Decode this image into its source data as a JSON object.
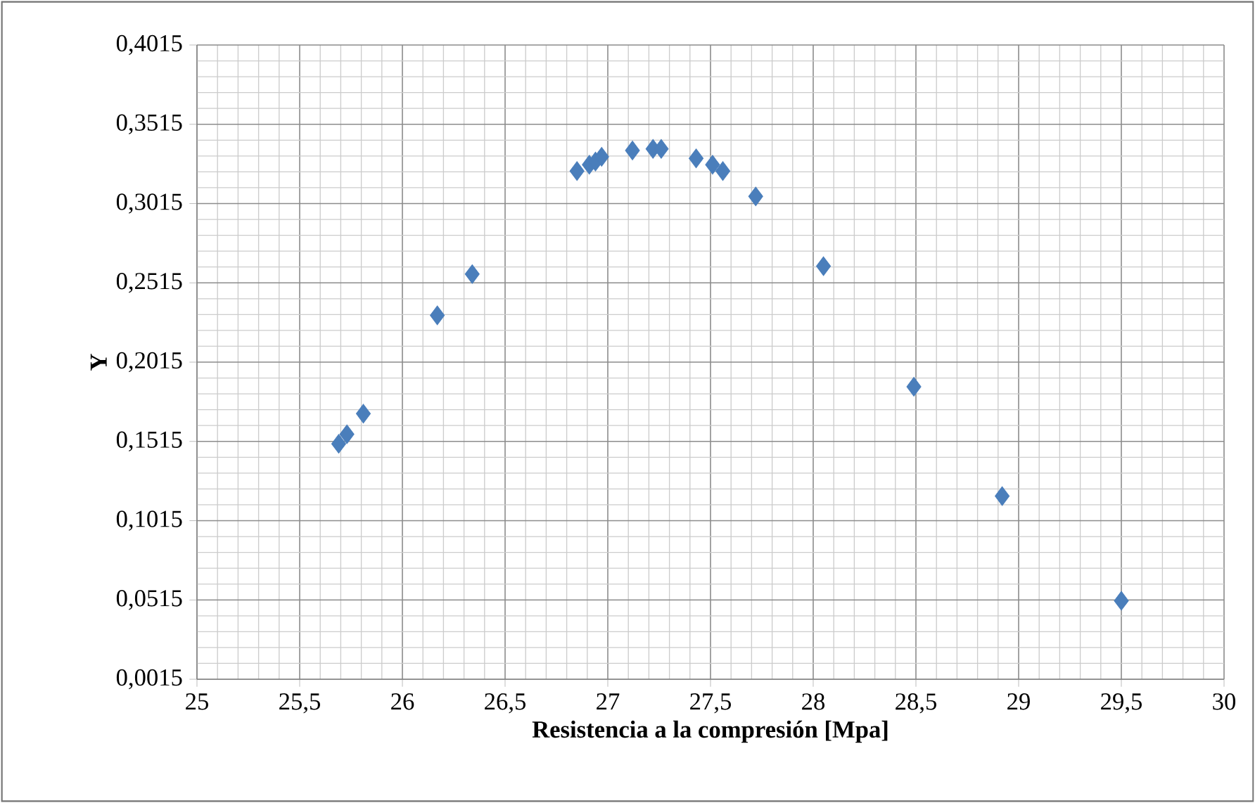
{
  "chart_data": {
    "type": "scatter",
    "xlabel": "Resistencia  a la compresión [Mpa]",
    "ylabel": "Y",
    "x": [
      25.69,
      25.73,
      25.81,
      26.17,
      26.34,
      26.85,
      26.91,
      26.94,
      26.97,
      27.12,
      27.22,
      27.26,
      27.43,
      27.51,
      27.56,
      27.72,
      28.05,
      28.49,
      28.92,
      29.5
    ],
    "series": [
      {
        "color": "#4a7ebb",
        "values": [
          0.15,
          0.156,
          0.169,
          0.231,
          0.257,
          0.322,
          0.326,
          0.328,
          0.331,
          0.335,
          0.336,
          0.336,
          0.33,
          0.326,
          0.322,
          0.306,
          0.262,
          0.186,
          0.117,
          0.051
        ]
      }
    ],
    "xlim": [
      25,
      30
    ],
    "ylim": [
      0.0015,
      0.4015
    ],
    "xticks": [
      25,
      {
        "value": 25.5,
        "label": "25,5"
      },
      26,
      {
        "value": 26.5,
        "label": "26,5"
      },
      27,
      {
        "value": 27.5,
        "label": "27,5"
      },
      28,
      {
        "value": 28.5,
        "label": "28,5"
      },
      29,
      {
        "value": 29.5,
        "label": "29,5"
      },
      30
    ],
    "yticks": [
      {
        "value": 0.0015,
        "label": "0,0015"
      },
      {
        "value": 0.0515,
        "label": "0,0515"
      },
      {
        "value": 0.1015,
        "label": "0,1015"
      },
      {
        "value": 0.1515,
        "label": "0,1515"
      },
      {
        "value": 0.2015,
        "label": "0,2015"
      },
      {
        "value": 0.2515,
        "label": "0,2515"
      },
      {
        "value": 0.3015,
        "label": "0,3015"
      },
      {
        "value": 0.3515,
        "label": "0,3515"
      },
      {
        "value": 0.4015,
        "label": "0,4015"
      }
    ],
    "grid": true,
    "marker": "diamond"
  }
}
